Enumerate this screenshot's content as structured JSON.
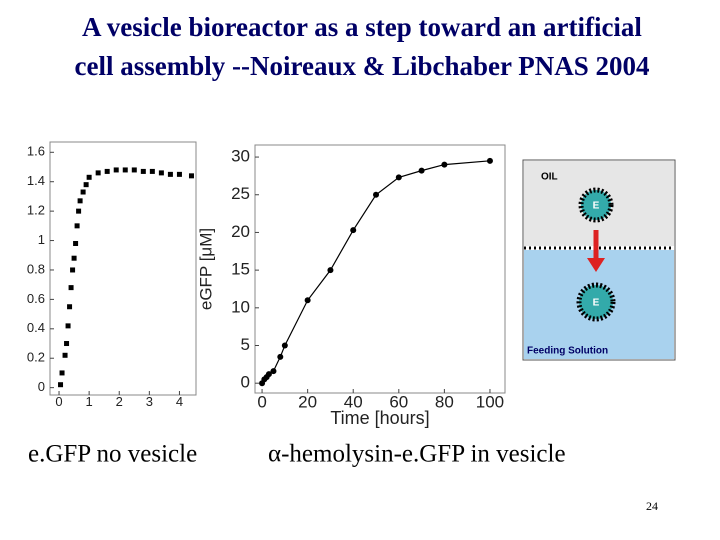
{
  "title": [
    "A vesicle bioreactor as a step toward an artificial",
    "cell assembly --Noireaux & Libchaber PNAS 2004"
  ],
  "captions": [
    "e.GFP no vesicle",
    "α-hemolysin-e.GFP in vesicle"
  ],
  "page_number": "24",
  "diagram": {
    "top_label": "OIL",
    "vesicle_labels": [
      "E",
      "E"
    ],
    "bottom_label": "Feeding Solution"
  },
  "chart_data": [
    {
      "type": "scatter",
      "marker": "square",
      "color": "#000000",
      "x": [
        0.05,
        0.1,
        0.2,
        0.25,
        0.3,
        0.35,
        0.4,
        0.45,
        0.5,
        0.55,
        0.6,
        0.65,
        0.7,
        0.8,
        0.9,
        1.0,
        1.3,
        1.6,
        1.9,
        2.2,
        2.5,
        2.8,
        3.1,
        3.4,
        3.7,
        4.0,
        4.4
      ],
      "values": [
        0.02,
        0.1,
        0.22,
        0.3,
        0.42,
        0.55,
        0.68,
        0.8,
        0.88,
        0.98,
        1.1,
        1.2,
        1.27,
        1.33,
        1.38,
        1.43,
        1.46,
        1.47,
        1.48,
        1.48,
        1.48,
        1.47,
        1.47,
        1.46,
        1.45,
        1.45,
        1.44
      ],
      "xlim": [
        -0.3,
        4.55
      ],
      "xticks": [
        0,
        1,
        2,
        3,
        4
      ],
      "ylim": [
        -0.05,
        1.67
      ],
      "yticks": [
        0,
        0.2,
        0.4,
        0.6,
        0.8,
        1,
        1.2,
        1.4,
        1.6
      ]
    },
    {
      "type": "line",
      "marker": "circle",
      "color": "#000000",
      "x_label": "Time [hours]",
      "y_label": "eGFP [μM]",
      "x": [
        0,
        1,
        2,
        3,
        5,
        8,
        10,
        20,
        30,
        40,
        50,
        60,
        70,
        80,
        100
      ],
      "values": [
        0,
        0.5,
        0.8,
        1.2,
        1.6,
        3.5,
        5,
        11,
        15,
        20.3,
        25,
        27.3,
        28.2,
        29,
        29.5
      ],
      "xlim": [
        -3.1,
        106.6
      ],
      "xticks": [
        0,
        20,
        40,
        60,
        80,
        100
      ],
      "ylim": [
        -1.3,
        31.6
      ],
      "yticks": [
        0,
        5,
        10,
        15,
        20,
        25,
        30
      ]
    }
  ]
}
